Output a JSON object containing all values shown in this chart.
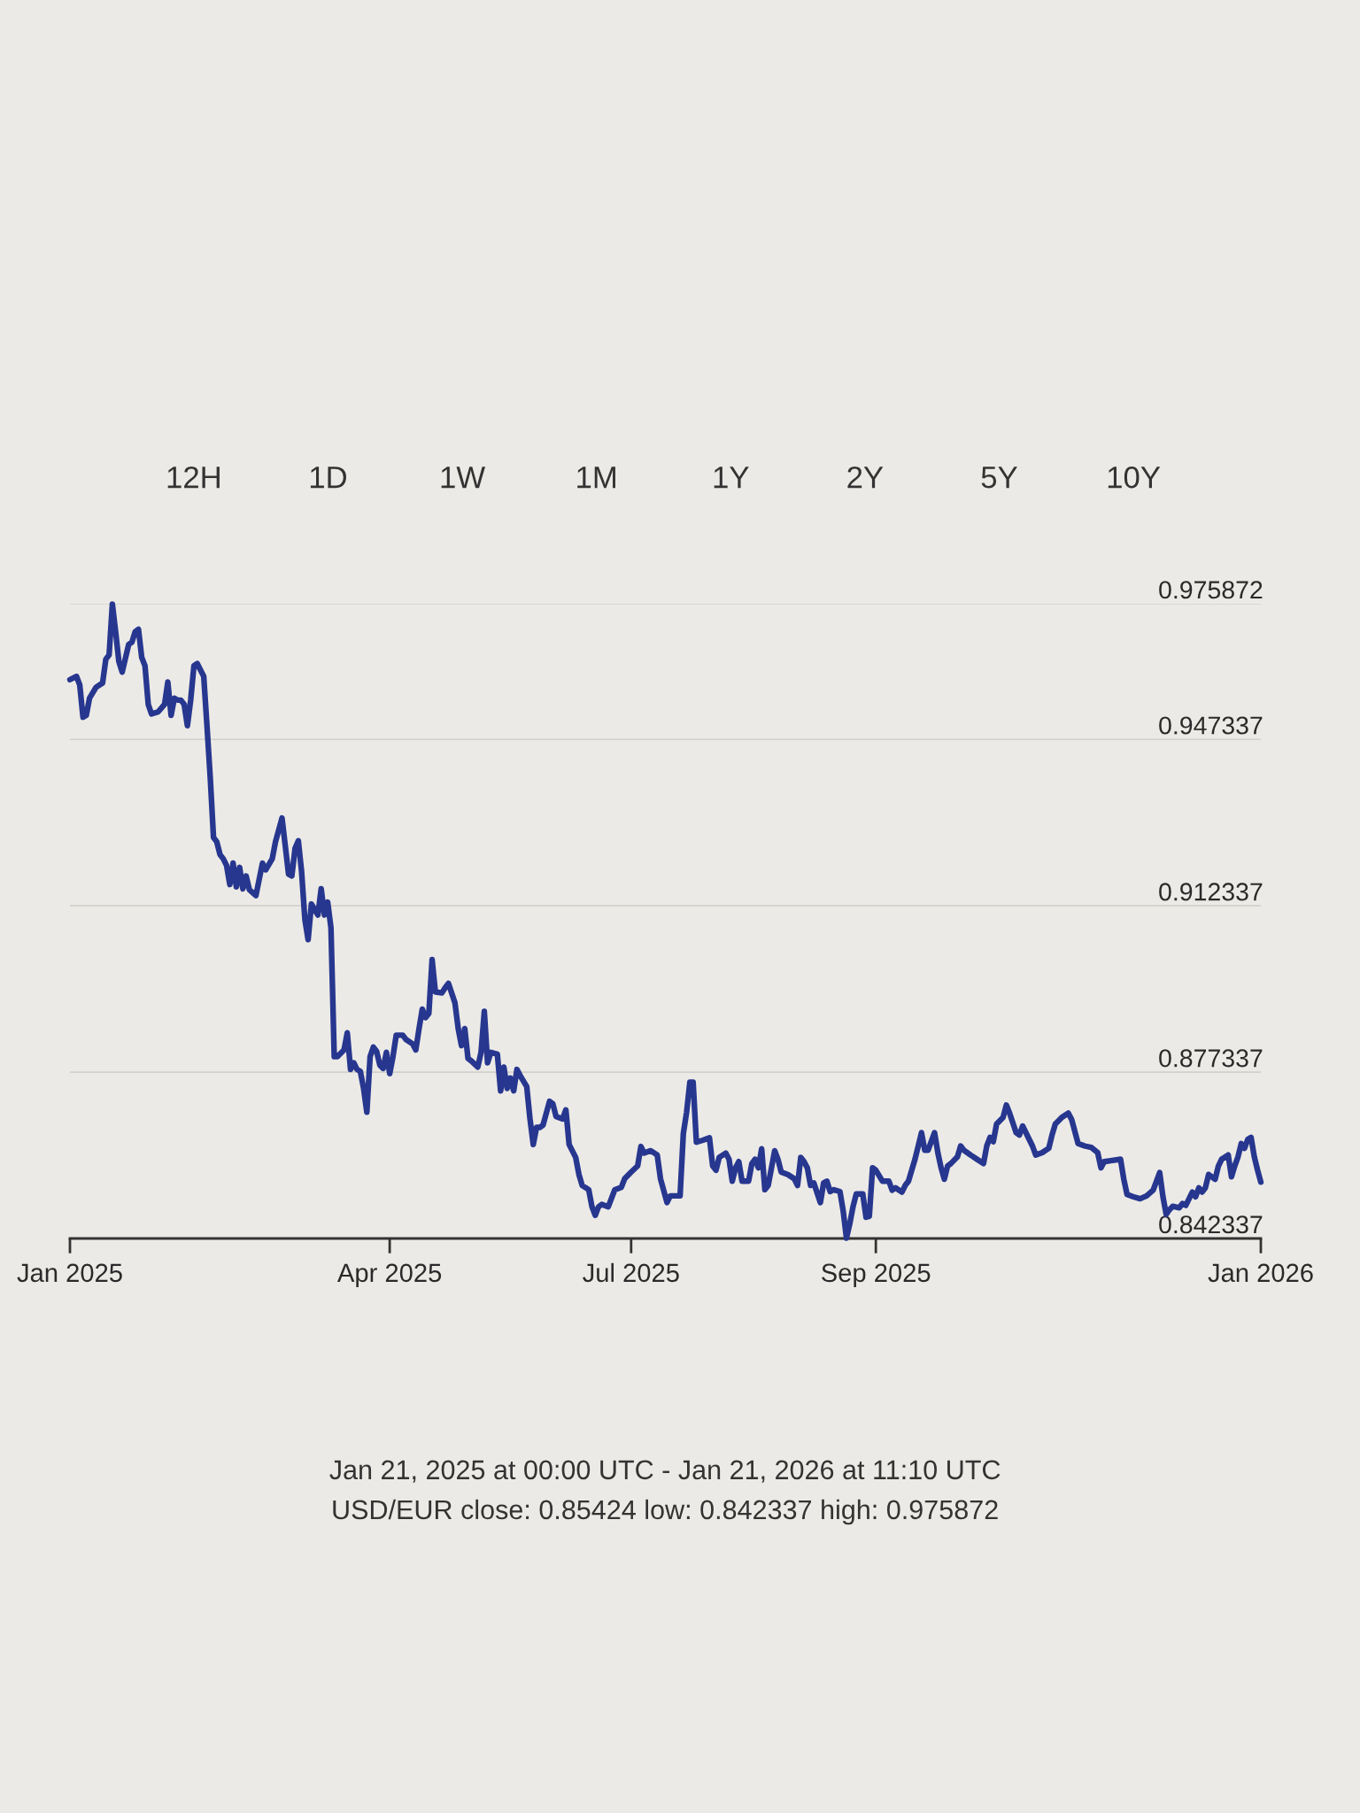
{
  "chart_data": {
    "type": "line",
    "color": "#27378f",
    "x": [
      "2025-01-21",
      "2025-01-23",
      "2025-01-24",
      "2025-01-25",
      "2025-01-26",
      "2025-01-27",
      "2025-01-29",
      "2025-01-31",
      "2025-02-01",
      "2025-02-02",
      "2025-02-03",
      "2025-02-04",
      "2025-02-05",
      "2025-02-06",
      "2025-02-08",
      "2025-02-09",
      "2025-02-10",
      "2025-02-11",
      "2025-02-12",
      "2025-02-13",
      "2025-02-14",
      "2025-02-15",
      "2025-02-17",
      "2025-02-19",
      "2025-02-20",
      "2025-02-21",
      "2025-02-22",
      "2025-02-23",
      "2025-02-24",
      "2025-02-25",
      "2025-02-26",
      "2025-02-27",
      "2025-02-28",
      "2025-03-01",
      "2025-03-03",
      "2025-03-04",
      "2025-03-05",
      "2025-03-06",
      "2025-03-07",
      "2025-03-08",
      "2025-03-09",
      "2025-03-10",
      "2025-03-11",
      "2025-03-12",
      "2025-03-13",
      "2025-03-14",
      "2025-03-15",
      "2025-03-16",
      "2025-03-17",
      "2025-03-19",
      "2025-03-21",
      "2025-03-22",
      "2025-03-24",
      "2025-03-25",
      "2025-03-27",
      "2025-03-28",
      "2025-03-29",
      "2025-03-30",
      "2025-03-31",
      "2025-04-01",
      "2025-04-02",
      "2025-04-03",
      "2025-04-04",
      "2025-04-05",
      "2025-04-07",
      "2025-04-08",
      "2025-04-09",
      "2025-04-10",
      "2025-04-11",
      "2025-04-12",
      "2025-04-13",
      "2025-04-15",
      "2025-04-16",
      "2025-04-17",
      "2025-04-18",
      "2025-04-19",
      "2025-04-20",
      "2025-04-21",
      "2025-04-22",
      "2025-04-23",
      "2025-04-24",
      "2025-04-25",
      "2025-04-26",
      "2025-04-27",
      "2025-04-28",
      "2025-04-29",
      "2025-04-30",
      "2025-05-01",
      "2025-05-03",
      "2025-05-04",
      "2025-05-06",
      "2025-05-07",
      "2025-05-08",
      "2025-05-09",
      "2025-05-10",
      "2025-05-11",
      "2025-05-12",
      "2025-05-13",
      "2025-05-15",
      "2025-05-16",
      "2025-05-17",
      "2025-05-19",
      "2025-05-20",
      "2025-05-21",
      "2025-05-22",
      "2025-05-23",
      "2025-05-24",
      "2025-05-26",
      "2025-05-27",
      "2025-05-28",
      "2025-05-29",
      "2025-05-30",
      "2025-06-01",
      "2025-06-02",
      "2025-06-03",
      "2025-06-04",
      "2025-06-05",
      "2025-06-06",
      "2025-06-07",
      "2025-06-08",
      "2025-06-10",
      "2025-06-11",
      "2025-06-12",
      "2025-06-13",
      "2025-06-14",
      "2025-06-15",
      "2025-06-17",
      "2025-06-18",
      "2025-06-19",
      "2025-06-21",
      "2025-06-22",
      "2025-06-23",
      "2025-06-25",
      "2025-06-26",
      "2025-06-27",
      "2025-06-29",
      "2025-06-30",
      "2025-07-01",
      "2025-07-02",
      "2025-07-03",
      "2025-07-05",
      "2025-07-07",
      "2025-07-09",
      "2025-07-10",
      "2025-07-12",
      "2025-07-14",
      "2025-07-15",
      "2025-07-16",
      "2025-07-18",
      "2025-07-20",
      "2025-07-21",
      "2025-07-23",
      "2025-07-24",
      "2025-07-27",
      "2025-07-28",
      "2025-07-29",
      "2025-07-30",
      "2025-07-31",
      "2025-08-01",
      "2025-08-03",
      "2025-08-05",
      "2025-08-06",
      "2025-08-07",
      "2025-08-08",
      "2025-08-10",
      "2025-08-11",
      "2025-08-12",
      "2025-08-13",
      "2025-08-14",
      "2025-08-15",
      "2025-08-17",
      "2025-08-18",
      "2025-08-19",
      "2025-08-20",
      "2025-08-21",
      "2025-08-22",
      "2025-08-23",
      "2025-08-25",
      "2025-08-26",
      "2025-08-27",
      "2025-08-29",
      "2025-08-31",
      "2025-09-01",
      "2025-09-02",
      "2025-09-03",
      "2025-09-04",
      "2025-09-05",
      "2025-09-06",
      "2025-09-08",
      "2025-09-09",
      "2025-09-10",
      "2025-09-11",
      "2025-09-12",
      "2025-09-14",
      "2025-09-15",
      "2025-09-16",
      "2025-09-17",
      "2025-09-18",
      "2025-09-19",
      "2025-09-21",
      "2025-09-22",
      "2025-09-23",
      "2025-09-24",
      "2025-09-25",
      "2025-09-27",
      "2025-09-29",
      "2025-09-30",
      "2025-10-01",
      "2025-10-03",
      "2025-10-04",
      "2025-10-05",
      "2025-10-07",
      "2025-10-08",
      "2025-10-09",
      "2025-10-10",
      "2025-10-11",
      "2025-10-13",
      "2025-10-14",
      "2025-10-15",
      "2025-10-16",
      "2025-10-17",
      "2025-10-18",
      "2025-10-20",
      "2025-10-21",
      "2025-10-22",
      "2025-10-24",
      "2025-10-26",
      "2025-10-28",
      "2025-10-29",
      "2025-10-30",
      "2025-10-31",
      "2025-11-01",
      "2025-11-03",
      "2025-11-04",
      "2025-11-05",
      "2025-11-07",
      "2025-11-08",
      "2025-11-09",
      "2025-11-11",
      "2025-11-12",
      "2025-11-13",
      "2025-11-15",
      "2025-11-17",
      "2025-11-18",
      "2025-11-19",
      "2025-11-21",
      "2025-11-23",
      "2025-11-24",
      "2025-11-26",
      "2025-11-28",
      "2025-11-30",
      "2025-12-02",
      "2025-12-03",
      "2025-12-04",
      "2025-12-06",
      "2025-12-09",
      "2025-12-10",
      "2025-12-11",
      "2025-12-13",
      "2025-12-15",
      "2025-12-17",
      "2025-12-19",
      "2025-12-21",
      "2025-12-22",
      "2025-12-23",
      "2025-12-24",
      "2025-12-25",
      "2025-12-27",
      "2025-12-28",
      "2025-12-29",
      "2025-12-31",
      "2026-01-01",
      "2026-01-02",
      "2026-01-03",
      "2026-01-04",
      "2026-01-05",
      "2026-01-07",
      "2026-01-08",
      "2026-01-09",
      "2026-01-11",
      "2026-01-12",
      "2026-01-13",
      "2026-01-14",
      "2026-01-15",
      "2026-01-16",
      "2026-01-17",
      "2026-01-18",
      "2026-01-19",
      "2026-01-20",
      "2026-01-21"
    ],
    "values": [
      0.9599,
      0.9606,
      0.9588,
      0.952,
      0.9524,
      0.956,
      0.9583,
      0.9592,
      0.9642,
      0.9651,
      0.9758,
      0.97,
      0.9637,
      0.9615,
      0.9673,
      0.9678,
      0.97,
      0.9705,
      0.9646,
      0.9628,
      0.9547,
      0.9527,
      0.9531,
      0.9547,
      0.9594,
      0.9524,
      0.956,
      0.9556,
      0.9556,
      0.9547,
      0.9502,
      0.9556,
      0.9628,
      0.9633,
      0.9606,
      0.9502,
      0.9393,
      0.9267,
      0.9258,
      0.9231,
      0.9222,
      0.9208,
      0.9168,
      0.9213,
      0.9163,
      0.9204,
      0.9159,
      0.9186,
      0.9157,
      0.9145,
      0.9213,
      0.9199,
      0.9222,
      0.9258,
      0.9308,
      0.9249,
      0.919,
      0.9186,
      0.9244,
      0.926,
      0.9195,
      0.9095,
      0.9052,
      0.9127,
      0.9104,
      0.9159,
      0.9104,
      0.9131,
      0.9077,
      0.8806,
      0.8806,
      0.882,
      0.8856,
      0.8779,
      0.8793,
      0.8779,
      0.8775,
      0.8739,
      0.8689,
      0.8806,
      0.8826,
      0.8817,
      0.8788,
      0.8781,
      0.8815,
      0.877,
      0.8806,
      0.8851,
      0.8851,
      0.8842,
      0.8833,
      0.882,
      0.8865,
      0.8906,
      0.8888,
      0.8897,
      0.901,
      0.8942,
      0.894,
      0.8951,
      0.896,
      0.8919,
      0.8865,
      0.8829,
      0.8865,
      0.8802,
      0.8797,
      0.8784,
      0.8815,
      0.8901,
      0.8793,
      0.8815,
      0.8811,
      0.8734,
      0.8784,
      0.8739,
      0.8761,
      0.8734,
      0.8779,
      0.8766,
      0.8743,
      0.8675,
      0.8621,
      0.8657,
      0.8657,
      0.8662,
      0.8712,
      0.8707,
      0.868,
      0.8675,
      0.8694,
      0.8621,
      0.8594,
      0.8558,
      0.8535,
      0.8526,
      0.849,
      0.8472,
      0.849,
      0.8495,
      0.849,
      0.8526,
      0.8531,
      0.8549,
      0.8563,
      0.8576,
      0.8617,
      0.8603,
      0.8608,
      0.8599,
      0.8549,
      0.8499,
      0.8513,
      0.8513,
      0.8644,
      0.8689,
      0.8752,
      0.8752,
      0.8626,
      0.863,
      0.8635,
      0.8576,
      0.8567,
      0.8594,
      0.8603,
      0.859,
      0.8544,
      0.8572,
      0.8585,
      0.8544,
      0.8544,
      0.8581,
      0.859,
      0.8572,
      0.8612,
      0.8526,
      0.8535,
      0.8608,
      0.859,
      0.8563,
      0.8558,
      0.8549,
      0.8535,
      0.8594,
      0.8585,
      0.8572,
      0.8535,
      0.854,
      0.8499,
      0.854,
      0.8544,
      0.8522,
      0.8526,
      0.8522,
      0.8481,
      0.8424,
      0.8454,
      0.849,
      0.8517,
      0.8517,
      0.8468,
      0.847,
      0.8572,
      0.8567,
      0.8544,
      0.8544,
      0.8525,
      0.853,
      0.8521,
      0.8535,
      0.8544,
      0.859,
      0.8618,
      0.8646,
      0.8609,
      0.8609,
      0.8646,
      0.8604,
      0.8572,
      0.8548,
      0.8576,
      0.8581,
      0.8595,
      0.8618,
      0.8609,
      0.8599,
      0.859,
      0.8581,
      0.8618,
      0.8636,
      0.8627,
      0.8664,
      0.8678,
      0.8704,
      0.8687,
      0.8646,
      0.8641,
      0.866,
      0.8632,
      0.8618,
      0.8599,
      0.8604,
      0.8613,
      0.8641,
      0.8664,
      0.8678,
      0.8687,
      0.8674,
      0.8623,
      0.8618,
      0.8615,
      0.8604,
      0.8572,
      0.8585,
      0.8587,
      0.859,
      0.8548,
      0.8516,
      0.8511,
      0.8507,
      0.8513,
      0.8525,
      0.8562,
      0.8511,
      0.8474,
      0.8484,
      0.8491,
      0.8488,
      0.8497,
      0.8493,
      0.8521,
      0.8511,
      0.853,
      0.8521,
      0.853,
      0.8558,
      0.8548,
      0.8576,
      0.859,
      0.8599,
      0.8553,
      0.8576,
      0.8595,
      0.8623,
      0.8613,
      0.8632,
      0.8636,
      0.8595,
      0.8567,
      0.8542
    ],
    "xlim": [
      "2025-01-21",
      "2026-01-21"
    ],
    "xticks": [
      {
        "value": "2025-01-21",
        "label": "Jan 2025"
      },
      {
        "value": "2025-04-29",
        "label": "Apr 2025"
      },
      {
        "value": "2025-07-12",
        "label": "Jul 2025"
      },
      {
        "value": "2025-09-25",
        "label": "Sep 2025"
      },
      {
        "value": "2026-01-21",
        "label": "Jan 2026"
      }
    ],
    "ylim": [
      0.842337,
      0.975872
    ],
    "yticks": [
      0.842337,
      0.877337,
      0.912337,
      0.947337,
      0.975872
    ],
    "grid": "y",
    "annotations": [
      "12H",
      "1D",
      "1W",
      "1M",
      "1Y",
      "2Y",
      "5Y",
      "10Y",
      "Jan 21, 2025 at 00:00 UTC - Jan 21, 2026 at 11:10 UTC",
      "USD/EUR close: 0.85424 low: 0.842337 high: 0.975872"
    ]
  }
}
